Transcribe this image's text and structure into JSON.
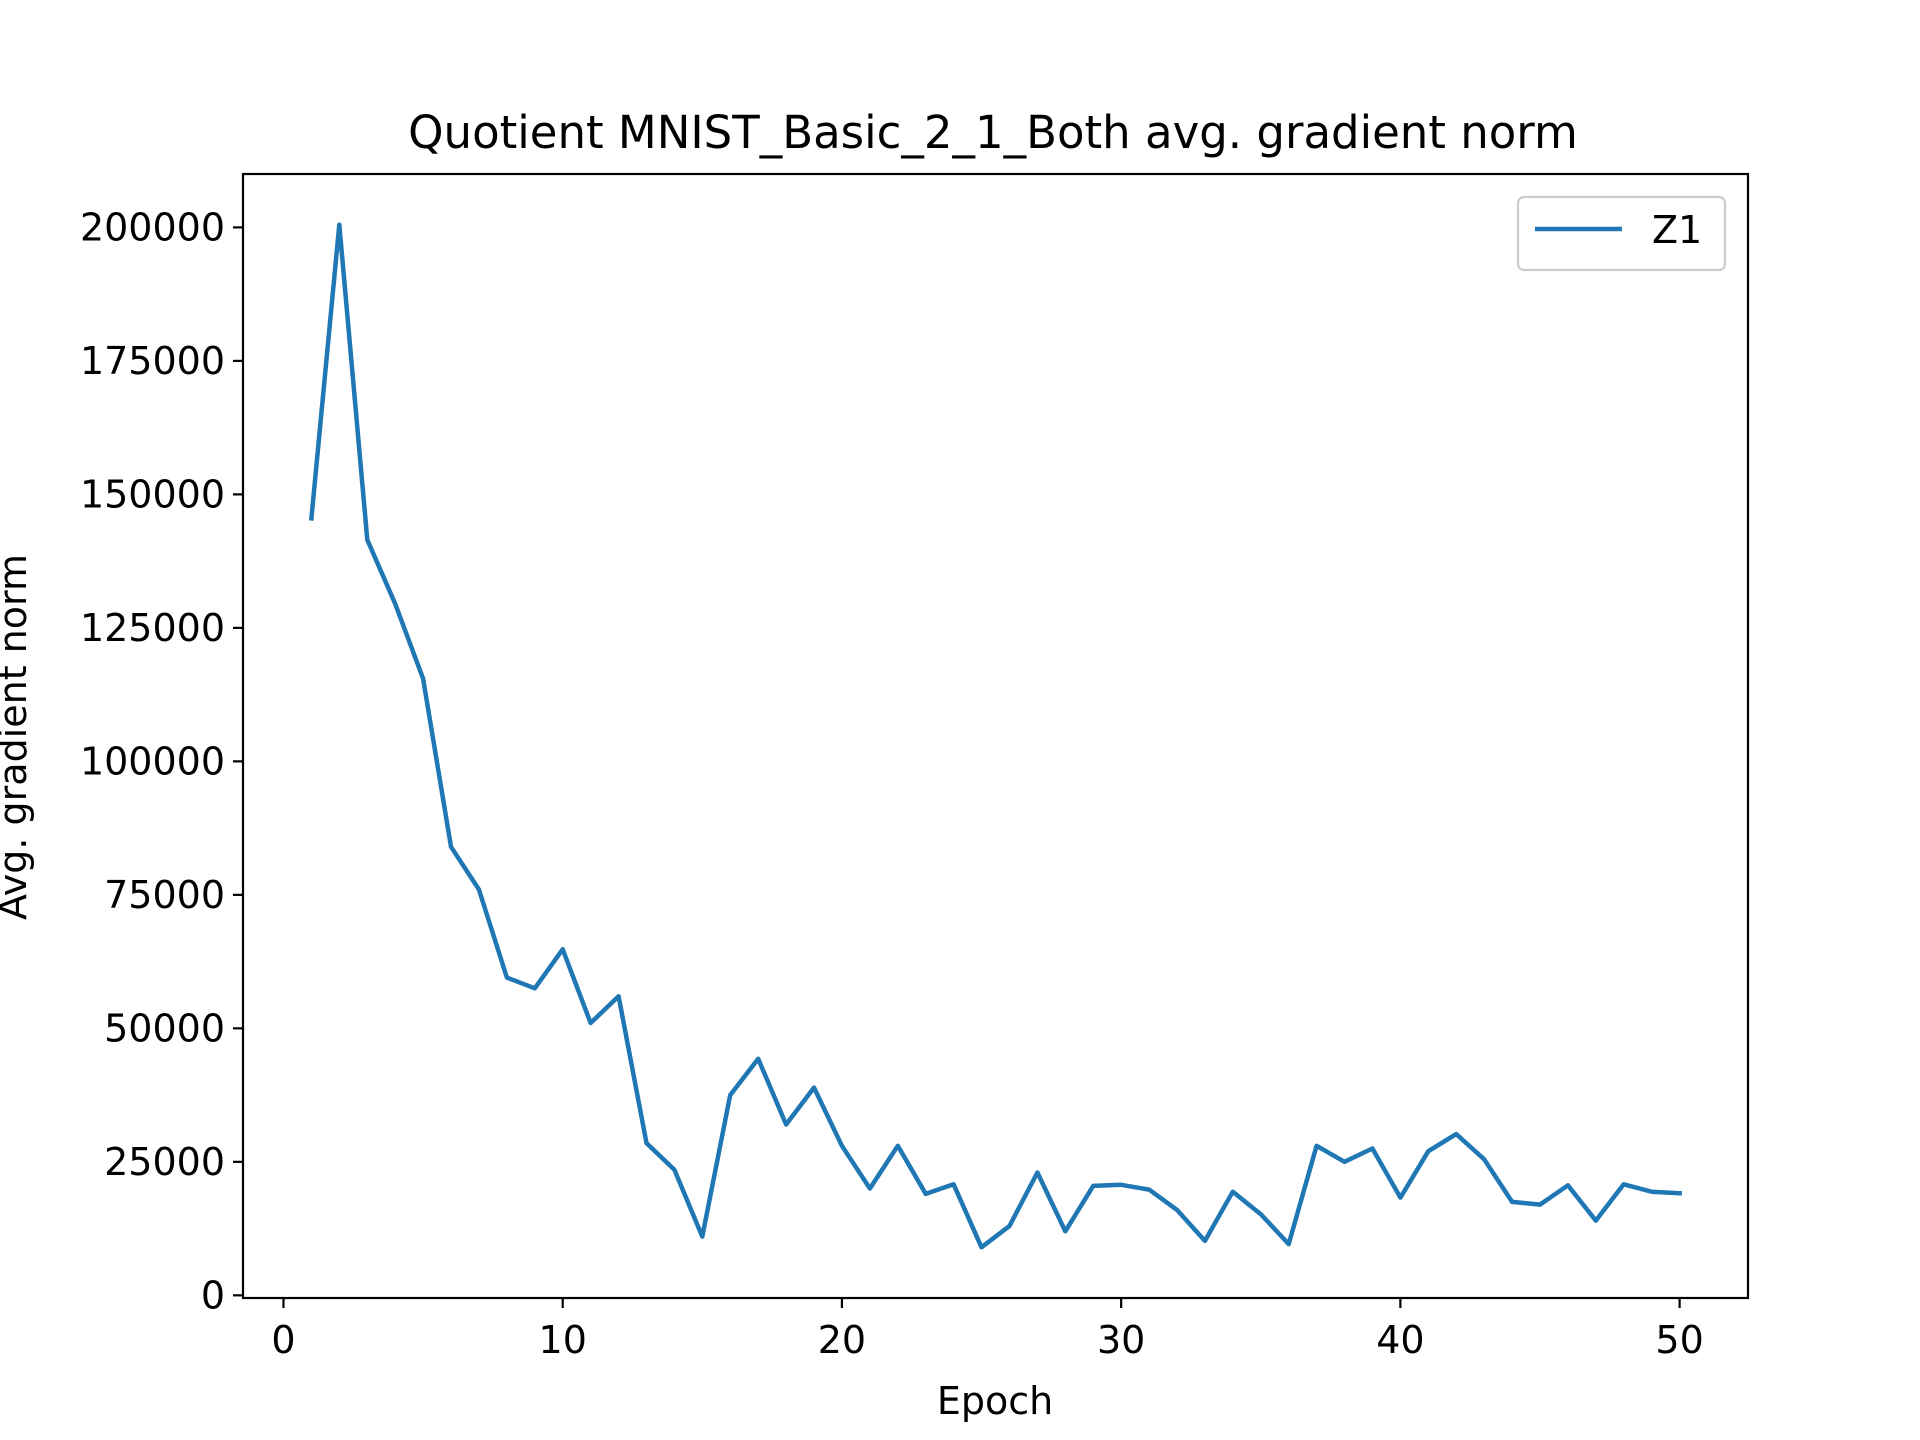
{
  "chart_data": {
    "type": "line",
    "title": "Quotient MNIST_Basic_2_1_Both avg. gradient norm",
    "xlabel": "Epoch",
    "ylabel": "Avg. gradient norm",
    "xlim": [
      -1.45,
      52.45
    ],
    "ylim": [
      -500,
      210000
    ],
    "xticks": [
      0,
      10,
      20,
      30,
      40,
      50
    ],
    "yticks": [
      0,
      25000,
      50000,
      75000,
      100000,
      125000,
      150000,
      175000,
      200000
    ],
    "grid": false,
    "legend_position": "top-right",
    "series": [
      {
        "name": "Z1",
        "color": "#1f77b4",
        "x": [
          1,
          2,
          3,
          4,
          5,
          6,
          7,
          8,
          9,
          10,
          11,
          12,
          13,
          14,
          15,
          16,
          17,
          18,
          19,
          20,
          21,
          22,
          23,
          24,
          25,
          26,
          27,
          28,
          29,
          30,
          31,
          32,
          33,
          34,
          35,
          36,
          37,
          38,
          39,
          40,
          41,
          42,
          43,
          44,
          45,
          46,
          47,
          48,
          49,
          50
        ],
        "y": [
          145500,
          200500,
          141500,
          129500,
          115500,
          84000,
          76000,
          59500,
          57500,
          64800,
          51000,
          56000,
          28500,
          23500,
          11000,
          37500,
          44300,
          32000,
          38900,
          28000,
          20000,
          28000,
          19000,
          20800,
          9000,
          13000,
          23000,
          12000,
          20500,
          20700,
          19800,
          16000,
          10200,
          19400,
          15200,
          9600,
          28000,
          25000,
          27500,
          18300,
          27000,
          30200,
          25500,
          17500,
          17000,
          20600,
          14000,
          20800,
          19400,
          19100
        ]
      }
    ]
  }
}
